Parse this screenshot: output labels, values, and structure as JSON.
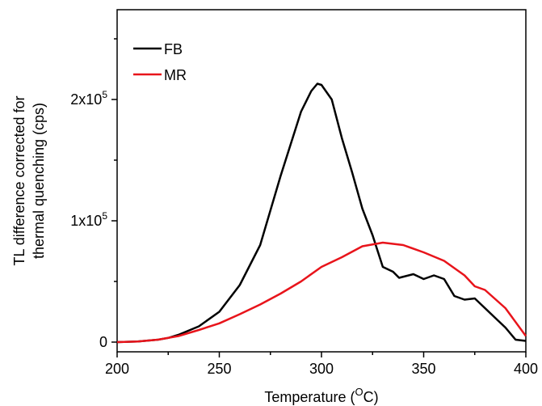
{
  "chart_data": {
    "type": "line",
    "xlabel": {
      "text": "Temperature (",
      "sup": "O",
      "after": "C)"
    },
    "ylabel": [
      "TL difference corrected for",
      "thermal quenching (cps)"
    ],
    "xlim": [
      200,
      400
    ],
    "ylim": [
      -8000,
      274000
    ],
    "xticks": [
      200,
      250,
      300,
      350,
      400
    ],
    "xminor": [
      225,
      275,
      325,
      375
    ],
    "yticks": [
      0,
      {
        "value": 100000,
        "label": "1x10",
        "sup": "5"
      },
      {
        "value": 200000,
        "label": "2x10",
        "sup": "5"
      }
    ],
    "yminor": [
      50000,
      150000,
      250000
    ],
    "legend": "top-left",
    "series": [
      {
        "name": "FB",
        "color": "#000000",
        "x": [
          200,
          210,
          220,
          225,
          230,
          240,
          250,
          260,
          270,
          280,
          290,
          295,
          298,
          300,
          305,
          310,
          315,
          320,
          325,
          330,
          335,
          338,
          345,
          350,
          355,
          360,
          365,
          370,
          375,
          380,
          385,
          390,
          395,
          400
        ],
        "values": [
          0,
          500,
          2000,
          3500,
          6000,
          13000,
          25000,
          47000,
          80000,
          137000,
          190000,
          207000,
          213000,
          212000,
          200000,
          168000,
          140000,
          110000,
          88000,
          62000,
          58000,
          53000,
          56000,
          52000,
          55000,
          52000,
          38000,
          35000,
          36000,
          28000,
          20000,
          12000,
          2000,
          1000
        ]
      },
      {
        "name": "MR",
        "color": "#e8141b",
        "x": [
          200,
          210,
          220,
          230,
          240,
          250,
          260,
          270,
          280,
          290,
          300,
          310,
          320,
          330,
          340,
          350,
          360,
          370,
          375,
          380,
          390,
          400
        ],
        "values": [
          0,
          500,
          2000,
          5000,
          10000,
          15500,
          23000,
          31000,
          40000,
          50000,
          62000,
          70000,
          79000,
          82000,
          80000,
          74000,
          67000,
          55000,
          46000,
          43000,
          28000,
          5000
        ]
      }
    ]
  }
}
